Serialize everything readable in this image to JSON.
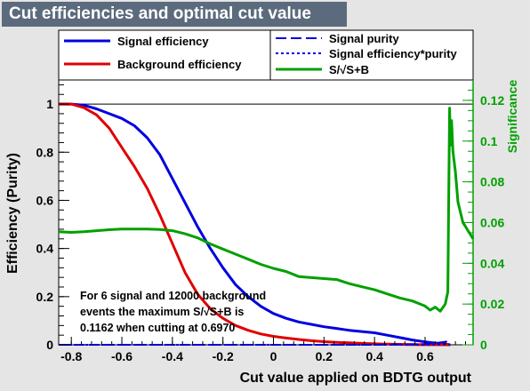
{
  "window_title": "Cut efficiencies and optimal cut value",
  "chart_data": {
    "type": "line",
    "title": "Cut efficiencies and optimal cut value",
    "xlabel": "Cut value applied on BDTG output",
    "ylabel": "Efficiency (Purity)",
    "y2label": "Significance",
    "xlim": [
      -0.85,
      0.79
    ],
    "ylim": [
      0,
      1.1
    ],
    "y2lim": [
      0,
      0.13
    ],
    "x_ticks": [
      -0.8,
      -0.6,
      -0.4,
      -0.2,
      0,
      0.2,
      0.4,
      0.6
    ],
    "x_tick_labels": [
      "-0.8",
      "-0.6",
      "-0.4",
      "-0.2",
      "0",
      "0.2",
      "0.4",
      "0.6"
    ],
    "y_ticks": [
      0,
      0.2,
      0.4,
      0.6,
      0.8,
      1
    ],
    "y_tick_labels": [
      "0",
      "0.2",
      "0.4",
      "0.6",
      "0.8",
      "1"
    ],
    "y2_ticks": [
      0,
      0.02,
      0.04,
      0.06,
      0.08,
      0.1,
      0.12
    ],
    "y2_tick_labels": [
      "0",
      "0.02",
      "0.04",
      "0.06",
      "0.08",
      "0.1",
      "0.12"
    ],
    "grid": false,
    "reference_line_y": 1.0,
    "series": [
      {
        "name": "Signal efficiency",
        "color": "#0000e0",
        "style": "solid",
        "axis": "left",
        "x": [
          -0.85,
          -0.8,
          -0.75,
          -0.7,
          -0.65,
          -0.6,
          -0.55,
          -0.5,
          -0.45,
          -0.4,
          -0.35,
          -0.3,
          -0.25,
          -0.2,
          -0.15,
          -0.1,
          -0.05,
          0.0,
          0.05,
          0.1,
          0.15,
          0.2,
          0.25,
          0.3,
          0.35,
          0.4,
          0.45,
          0.5,
          0.55,
          0.6,
          0.65,
          0.7
        ],
        "values": [
          1.0,
          1.0,
          0.995,
          0.98,
          0.96,
          0.94,
          0.91,
          0.86,
          0.79,
          0.69,
          0.59,
          0.49,
          0.4,
          0.32,
          0.25,
          0.2,
          0.16,
          0.13,
          0.11,
          0.095,
          0.085,
          0.075,
          0.068,
          0.06,
          0.055,
          0.05,
          0.04,
          0.03,
          0.02,
          0.012,
          0.006,
          0.0
        ]
      },
      {
        "name": "Background efficiency",
        "color": "#e00000",
        "style": "solid",
        "axis": "left",
        "x": [
          -0.85,
          -0.8,
          -0.75,
          -0.7,
          -0.65,
          -0.6,
          -0.55,
          -0.5,
          -0.45,
          -0.4,
          -0.35,
          -0.3,
          -0.25,
          -0.2,
          -0.15,
          -0.1,
          -0.05,
          0.0,
          0.05,
          0.1,
          0.15,
          0.2,
          0.25,
          0.3,
          0.35,
          0.4,
          0.45,
          0.5,
          0.55,
          0.6,
          0.65,
          0.7
        ],
        "values": [
          1.0,
          1.0,
          0.985,
          0.955,
          0.9,
          0.82,
          0.74,
          0.65,
          0.54,
          0.42,
          0.3,
          0.21,
          0.15,
          0.11,
          0.08,
          0.06,
          0.045,
          0.035,
          0.028,
          0.022,
          0.017,
          0.013,
          0.01,
          0.008,
          0.006,
          0.004,
          0.003,
          0.002,
          0.001,
          0.0005,
          0.0002,
          0.0
        ]
      },
      {
        "name": "Signal purity",
        "color": "#0000e0",
        "style": "dashed",
        "axis": "left",
        "x": [
          -0.85,
          -0.5,
          -0.2,
          0.0,
          0.2,
          0.4,
          0.6,
          0.65,
          0.7
        ],
        "values": [
          0.0,
          0.0,
          0.0,
          0.0,
          0.0,
          0.0,
          0.003,
          0.008,
          0.015
        ]
      },
      {
        "name": "Signal efficiency*purity",
        "color": "#0000e0",
        "style": "dotted",
        "axis": "left",
        "x": [
          -0.85,
          -0.5,
          -0.2,
          0.0,
          0.2,
          0.4,
          0.6,
          0.65,
          0.7
        ],
        "values": [
          0.0,
          0.0,
          0.0,
          0.0,
          0.0,
          0.0,
          0.0,
          0.001,
          0.002
        ]
      },
      {
        "name": "S/√S+B",
        "color": "#00a000",
        "style": "solid",
        "axis": "right",
        "x": [
          -0.85,
          -0.8,
          -0.75,
          -0.7,
          -0.65,
          -0.6,
          -0.55,
          -0.5,
          -0.45,
          -0.4,
          -0.35,
          -0.3,
          -0.25,
          -0.2,
          -0.15,
          -0.1,
          -0.05,
          0.0,
          0.05,
          0.1,
          0.15,
          0.2,
          0.25,
          0.3,
          0.35,
          0.4,
          0.45,
          0.5,
          0.55,
          0.6,
          0.62,
          0.64,
          0.66,
          0.68,
          0.69,
          0.695,
          0.697,
          0.7,
          0.705,
          0.71,
          0.72,
          0.73,
          0.74,
          0.75,
          0.76,
          0.77,
          0.78,
          0.79
        ],
        "values": [
          0.0555,
          0.0552,
          0.0555,
          0.056,
          0.0565,
          0.0568,
          0.0568,
          0.0568,
          0.0566,
          0.056,
          0.0545,
          0.0525,
          0.0495,
          0.047,
          0.0445,
          0.042,
          0.0395,
          0.0375,
          0.036,
          0.0335,
          0.033,
          0.0325,
          0.032,
          0.03,
          0.0285,
          0.027,
          0.025,
          0.023,
          0.0215,
          0.019,
          0.017,
          0.0185,
          0.0165,
          0.02,
          0.026,
          0.09,
          0.1162,
          0.098,
          0.11,
          0.095,
          0.085,
          0.07,
          0.065,
          0.06,
          0.058,
          0.056,
          0.054,
          0.052
        ]
      }
    ],
    "annotation": {
      "line1": "For 6 signal and 12000 background",
      "line2": "events the maximum S/√S+B is",
      "line3": "0.1162 when cutting at 0.6970"
    },
    "legend": {
      "placement": "top",
      "items": [
        {
          "label": "Signal efficiency",
          "color": "#0000e0",
          "style": "solid"
        },
        {
          "label": "Background efficiency",
          "color": "#e00000",
          "style": "solid"
        },
        {
          "label": "Signal purity",
          "color": "#0000e0",
          "style": "dashed"
        },
        {
          "label": "Signal efficiency*purity",
          "color": "#0000e0",
          "style": "dotted"
        },
        {
          "label": "S/√S+B",
          "color": "#00a000",
          "style": "solid"
        }
      ]
    }
  }
}
